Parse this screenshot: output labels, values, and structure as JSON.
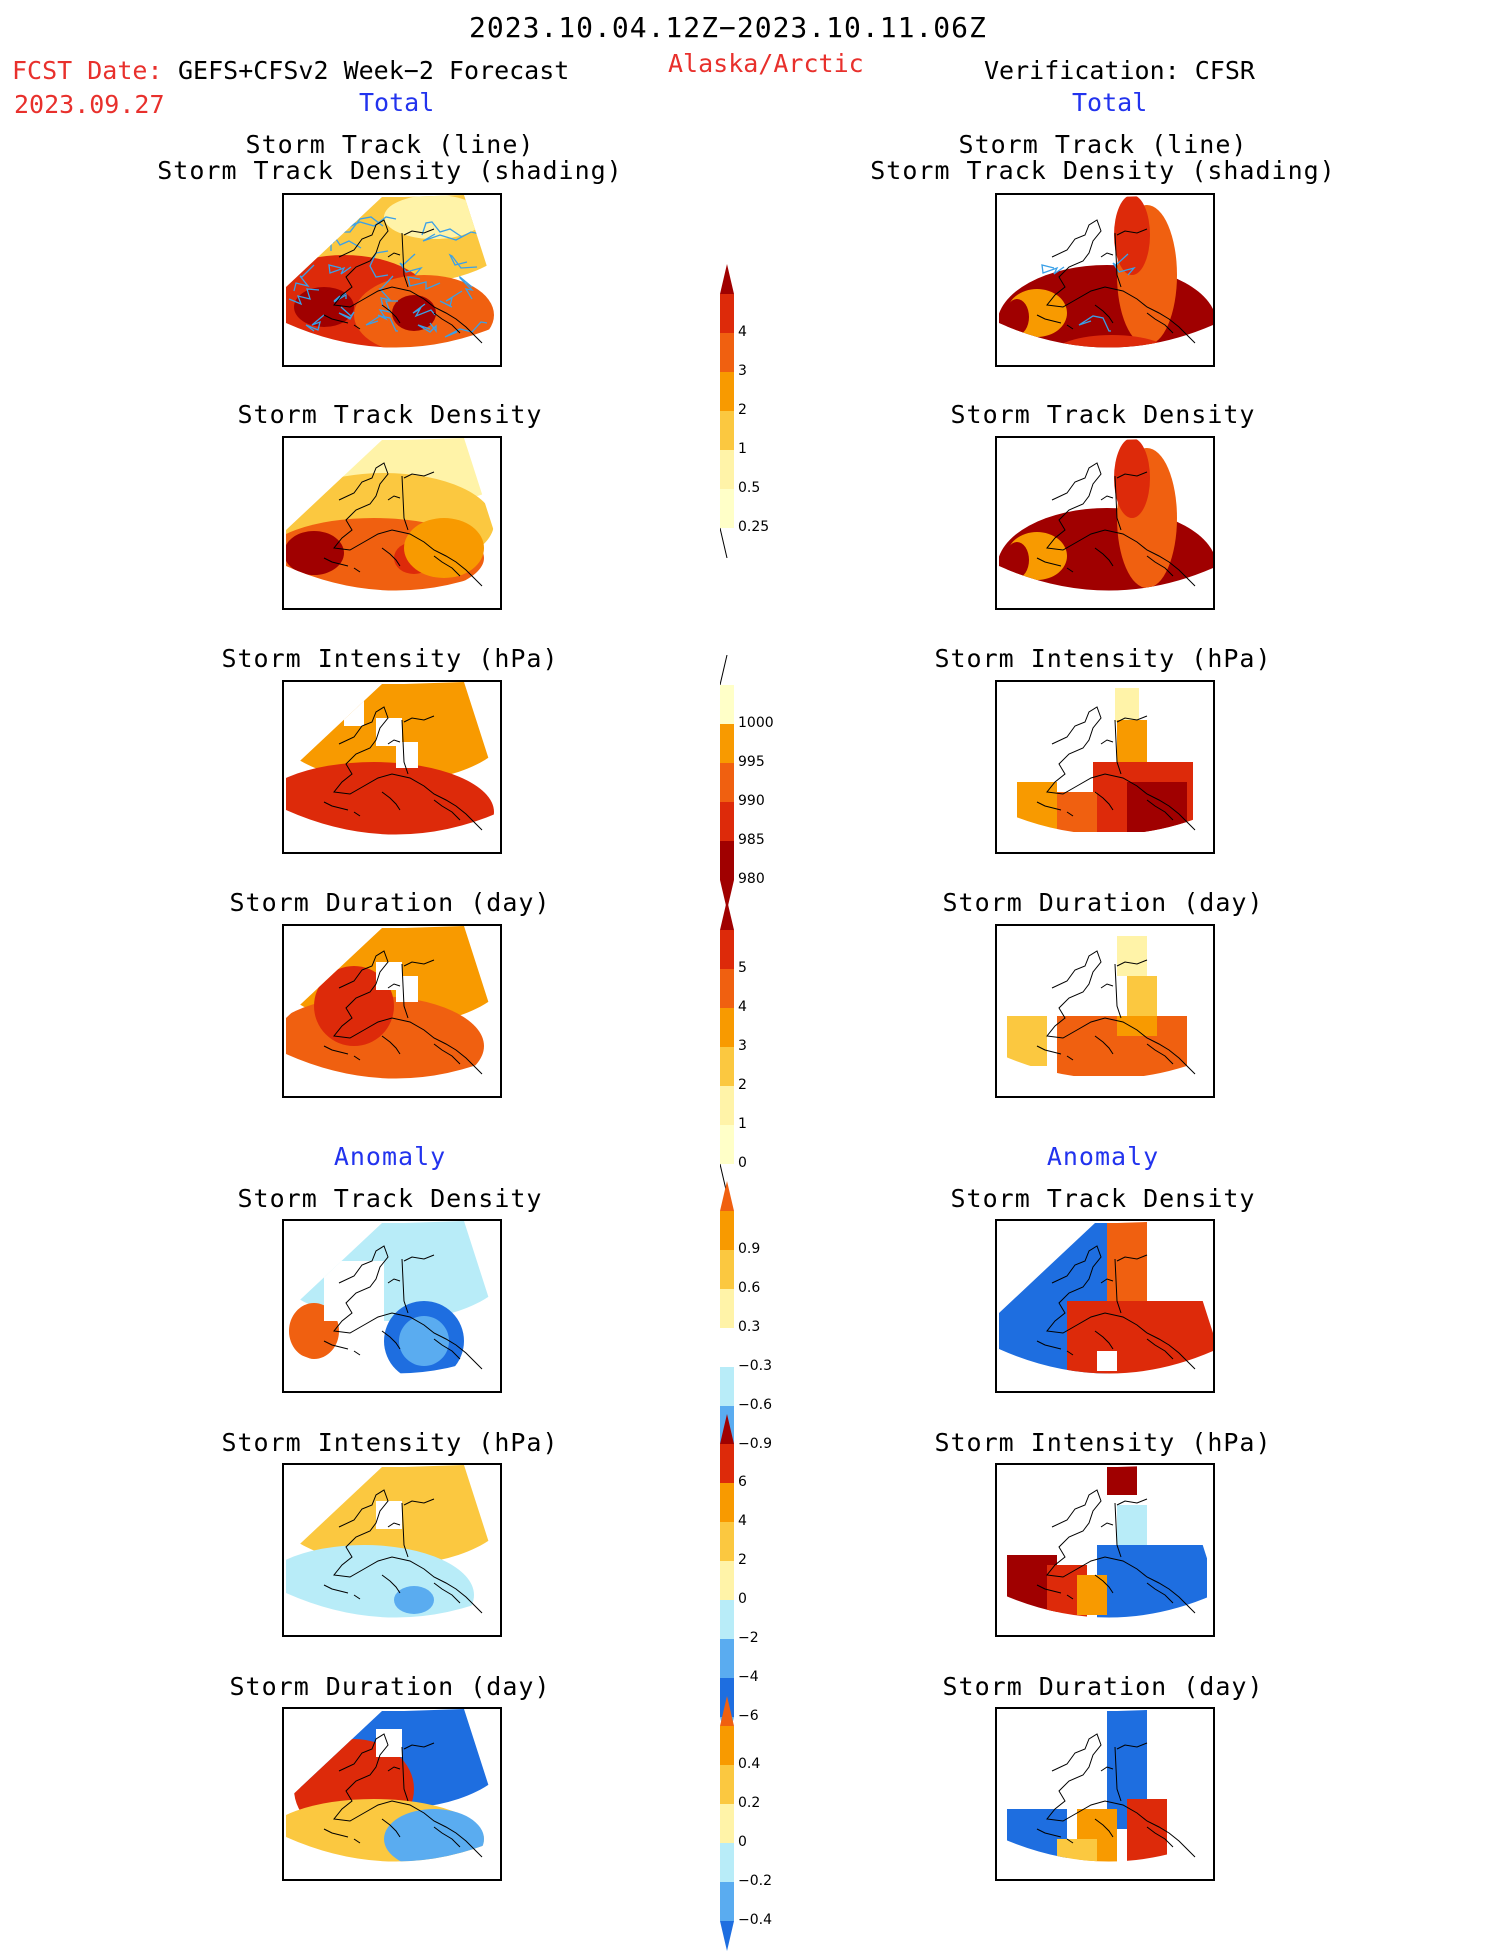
{
  "header": {
    "title": "2023.10.04.12Z−2023.10.11.06Z",
    "region": "Alaska/Arctic",
    "fcst_label": "FCST Date:",
    "fcst_model": "GEFS+CFSv2 Week−2 Forecast",
    "fcst_date": "2023.09.27",
    "verification": "Verification: CFSR",
    "left_total": "Total",
    "right_total": "Total"
  },
  "sections": {
    "left_anomaly": "Anomaly",
    "right_anomaly": "Anomaly"
  },
  "panels": {
    "track_line_title1": "Storm Track (line)",
    "track_line_title2": "Storm Track Density (shading)",
    "density_title": "Storm Track Density",
    "intensity_title": "Storm Intensity (hPa)",
    "duration_title": "Storm Duration (day)"
  },
  "colorbars": {
    "density_total": [
      "4",
      "3",
      "2",
      "1",
      "0.5",
      "0.25"
    ],
    "intensity_total": [
      "1000",
      "995",
      "990",
      "985",
      "980"
    ],
    "duration_total": [
      "5",
      "4",
      "3",
      "2",
      "1",
      "0"
    ],
    "density_anom": [
      "0.9",
      "0.6",
      "0.3",
      "−0.3",
      "−0.6",
      "−0.9"
    ],
    "intensity_anom": [
      "6",
      "4",
      "2",
      "0",
      "−2",
      "−4",
      "−6"
    ],
    "duration_anom": [
      "0.4",
      "0.2",
      "0",
      "−0.2",
      "−0.4"
    ]
  },
  "colors": {
    "dark_red": "#a00000",
    "red": "#dd2a0a",
    "orange_red": "#f06010",
    "orange": "#f89a00",
    "light_orange": "#fbc840",
    "yellow": "#fff3a8",
    "pale_yellow": "#ffffc8",
    "light_blue": "#b8ecf8",
    "mid_blue": "#5aacf0",
    "blue": "#1e6ee0",
    "track_line": "#3aa0e8",
    "title_red": "#e8302c",
    "title_blue": "#2233ee"
  }
}
